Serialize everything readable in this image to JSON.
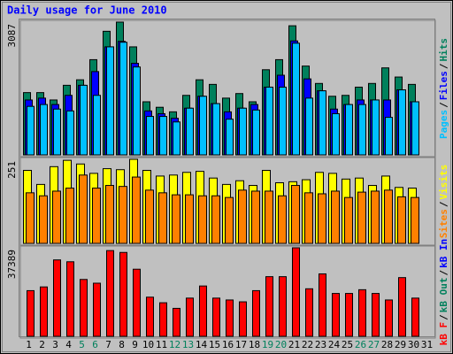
{
  "chart_data": [
    {
      "type": "bar",
      "title": "Daily usage for June 2010",
      "legend_separator": "/",
      "ylim": [
        0,
        3087
      ],
      "yticks": [
        3087
      ],
      "series": [
        {
          "name": "Hits",
          "color": "#00805c",
          "values": [
            1448,
            1448,
            1277,
            1618,
            1746,
            2214,
            2874,
            3087,
            2512,
            1235,
            1107,
            1001,
            1384,
            1746,
            1639,
            1320,
            1426,
            1235,
            1980,
            2214,
            3002,
            2065,
            1661,
            1363,
            1384,
            1575,
            1661,
            2023,
            1810,
            1639,
            null
          ]
        },
        {
          "name": "Files",
          "color": "#0000ff",
          "values": [
            1277,
            1320,
            1171,
            1384,
            1618,
            1937,
            2512,
            2640,
            2129,
            1022,
            958,
            852,
            1086,
            1363,
            1192,
            1001,
            1086,
            1171,
            1575,
            1852,
            2650,
            1767,
            1490,
            1065,
            1171,
            1277,
            1277,
            1277,
            1512,
            1235,
            null
          ]
        },
        {
          "name": "Pages",
          "color": "#00c0ff",
          "values": [
            1128,
            1171,
            1065,
            1022,
            1618,
            1384,
            2512,
            2619,
            2044,
            894,
            894,
            766,
            1086,
            1363,
            1192,
            830,
            1086,
            1043,
            1575,
            1575,
            2597,
            1320,
            1490,
            958,
            1171,
            1171,
            1277,
            873,
            1512,
            1235,
            null
          ]
        }
      ]
    },
    {
      "type": "bar",
      "legend_separator": "/",
      "ylim": [
        0,
        251
      ],
      "yticks": [
        251
      ],
      "series": [
        {
          "name": "Visits",
          "color": "#ffff00",
          "values": [
            218,
            176,
            229,
            248,
            237,
            209,
            223,
            220,
            251,
            218,
            201,
            204,
            212,
            215,
            195,
            176,
            187,
            173,
            218,
            181,
            184,
            190,
            212,
            209,
            192,
            195,
            173,
            201,
            167,
            165,
            null
          ]
        },
        {
          "name": "Sites",
          "color": "#ff8000",
          "values": [
            151,
            142,
            156,
            165,
            204,
            165,
            173,
            170,
            198,
            159,
            151,
            145,
            145,
            142,
            142,
            137,
            159,
            156,
            156,
            142,
            173,
            151,
            148,
            156,
            137,
            153,
            156,
            159,
            139,
            137,
            null
          ]
        }
      ]
    },
    {
      "type": "bar",
      "legend_separator": "/",
      "ylim": [
        0,
        37389
      ],
      "yticks": [
        37389
      ],
      "categories": [
        1,
        2,
        3,
        4,
        5,
        6,
        7,
        8,
        9,
        10,
        11,
        12,
        13,
        14,
        15,
        16,
        17,
        18,
        19,
        20,
        21,
        22,
        23,
        24,
        25,
        26,
        27,
        28,
        29,
        30,
        31
      ],
      "category_colors": [
        "#000000",
        "#000000",
        "#000000",
        "#000000",
        "#00805c",
        "#00805c",
        "#000000",
        "#000000",
        "#000000",
        "#000000",
        "#000000",
        "#00805c",
        "#00805c",
        "#000000",
        "#000000",
        "#000000",
        "#000000",
        "#000000",
        "#00805c",
        "#00805c",
        "#000000",
        "#000000",
        "#000000",
        "#000000",
        "#000000",
        "#00805c",
        "#00805c",
        "#000000",
        "#000000",
        "#000000",
        "#000000"
      ],
      "series": [
        {
          "name": "kB In",
          "color": "#0000ff",
          "values": [
            0,
            0,
            0,
            0,
            0,
            0,
            0,
            0,
            0,
            0,
            0,
            0,
            0,
            0,
            0,
            0,
            0,
            0,
            0,
            0,
            0,
            0,
            0,
            0,
            0,
            0,
            0,
            0,
            0,
            0,
            null
          ]
        },
        {
          "name": "kB Out",
          "color": "#00805c",
          "values": [
            0,
            0,
            0,
            0,
            0,
            0,
            0,
            0,
            0,
            0,
            0,
            0,
            0,
            0,
            0,
            0,
            0,
            0,
            0,
            0,
            0,
            0,
            0,
            0,
            0,
            0,
            0,
            0,
            0,
            0,
            null
          ]
        },
        {
          "name": "kB F",
          "color": "#ff0000",
          "values": [
            19286,
            20861,
            32275,
            31488,
            24010,
            22435,
            36211,
            35424,
            28339,
            16531,
            14170,
            11808,
            16138,
            21254,
            16138,
            15350,
            14563,
            19286,
            25190,
            25190,
            37389,
            20074,
            26371,
            18106,
            18106,
            19680,
            18106,
            15350,
            24797,
            16138,
            null
          ]
        }
      ]
    }
  ]
}
